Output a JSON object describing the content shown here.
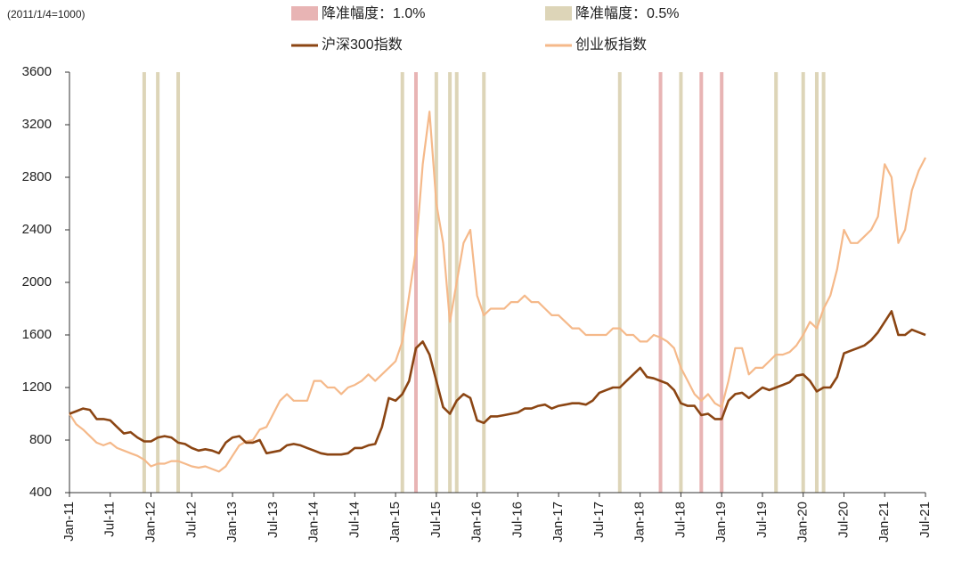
{
  "chart_data": {
    "type": "line",
    "note": "(2011/1/4=1000)",
    "categories": [
      "Jan-11",
      null,
      null,
      null,
      null,
      null,
      "Jul-11",
      null,
      null,
      null,
      null,
      null,
      "Jan-12",
      null,
      null,
      null,
      null,
      null,
      "Jul-12",
      null,
      null,
      null,
      null,
      null,
      "Jan-13",
      null,
      null,
      null,
      null,
      null,
      "Jul-13",
      null,
      null,
      null,
      null,
      null,
      "Jan-14",
      null,
      null,
      null,
      null,
      null,
      "Jul-14",
      null,
      null,
      null,
      null,
      null,
      "Jan-15",
      null,
      null,
      null,
      null,
      null,
      "Jul-15",
      null,
      null,
      null,
      null,
      null,
      "Jan-16",
      null,
      null,
      null,
      null,
      null,
      "Jul-16",
      null,
      null,
      null,
      null,
      null,
      "Jan-17",
      null,
      null,
      null,
      null,
      null,
      "Jul-17",
      null,
      null,
      null,
      null,
      null,
      "Jan-18",
      null,
      null,
      null,
      null,
      null,
      "Jul-18",
      null,
      null,
      null,
      null,
      null,
      "Jan-19",
      null,
      null,
      null,
      null,
      null,
      "Jul-19",
      null,
      null,
      null,
      null,
      null,
      "Jan-20",
      null,
      null,
      null,
      null,
      null,
      "Jul-20",
      null,
      null,
      null,
      null,
      null,
      "Jan-21",
      null,
      null,
      null,
      null,
      null,
      "Jul-21"
    ],
    "series": [
      {
        "name": "沪深300指数",
        "color": "#8b4513",
        "width": 2.6,
        "values": [
          1000,
          1020,
          1040,
          1030,
          960,
          960,
          950,
          900,
          850,
          860,
          820,
          790,
          790,
          820,
          830,
          820,
          780,
          770,
          740,
          720,
          730,
          720,
          700,
          780,
          820,
          830,
          780,
          780,
          800,
          700,
          710,
          720,
          760,
          770,
          760,
          740,
          720,
          700,
          690,
          690,
          690,
          700,
          740,
          740,
          760,
          770,
          900,
          1120,
          1100,
          1150,
          1250,
          1500,
          1550,
          1450,
          1250,
          1050,
          1000,
          1100,
          1150,
          1120,
          950,
          930,
          980,
          980,
          990,
          1000,
          1010,
          1040,
          1040,
          1060,
          1070,
          1040,
          1060,
          1070,
          1080,
          1080,
          1070,
          1100,
          1160,
          1180,
          1200,
          1200,
          1250,
          1300,
          1350,
          1280,
          1270,
          1250,
          1230,
          1180,
          1080,
          1060,
          1060,
          990,
          1000,
          960,
          960,
          1100,
          1150,
          1160,
          1120,
          1160,
          1200,
          1180,
          1200,
          1220,
          1240,
          1290,
          1300,
          1250,
          1170,
          1200,
          1200,
          1280,
          1460,
          1480,
          1500,
          1520,
          1560,
          1620,
          1700,
          1780,
          1600,
          1600,
          1640,
          1620,
          1600
        ]
      },
      {
        "name": "创业板指数",
        "color": "#f5b98a",
        "width": 2.2,
        "values": [
          1000,
          920,
          880,
          830,
          780,
          760,
          780,
          740,
          720,
          700,
          680,
          650,
          600,
          620,
          620,
          640,
          640,
          620,
          600,
          590,
          600,
          580,
          560,
          600,
          680,
          760,
          790,
          800,
          880,
          900,
          1000,
          1100,
          1150,
          1100,
          1100,
          1100,
          1250,
          1250,
          1200,
          1200,
          1150,
          1200,
          1220,
          1250,
          1300,
          1250,
          1300,
          1350,
          1400,
          1550,
          1900,
          2250,
          2900,
          3300,
          2600,
          2300,
          1700,
          2000,
          2300,
          2400,
          1900,
          1750,
          1800,
          1800,
          1800,
          1850,
          1850,
          1900,
          1850,
          1850,
          1800,
          1750,
          1750,
          1700,
          1650,
          1650,
          1600,
          1600,
          1600,
          1600,
          1650,
          1650,
          1600,
          1600,
          1550,
          1550,
          1600,
          1580,
          1550,
          1500,
          1350,
          1250,
          1150,
          1100,
          1150,
          1080,
          1050,
          1250,
          1500,
          1500,
          1300,
          1350,
          1350,
          1400,
          1450,
          1450,
          1470,
          1520,
          1600,
          1700,
          1650,
          1800,
          1900,
          2100,
          2400,
          2300,
          2300,
          2350,
          2400,
          2500,
          2900,
          2800,
          2300,
          2400,
          2700,
          2850,
          2950
        ]
      }
    ],
    "events": [
      {
        "name": "降准幅度：1.0%",
        "color": "#e8b4b4",
        "x": [
          51,
          87,
          93,
          96
        ]
      },
      {
        "name": "降准幅度：0.5%",
        "color": "#ddd5b8",
        "x": [
          11,
          13,
          16,
          49,
          54,
          56,
          57,
          61,
          81,
          90,
          104,
          108,
          110,
          111
        ]
      }
    ],
    "ylim": [
      400,
      3600
    ],
    "yticks": [
      400,
      800,
      1200,
      1600,
      2000,
      2400,
      2800,
      3200,
      3600
    ]
  }
}
